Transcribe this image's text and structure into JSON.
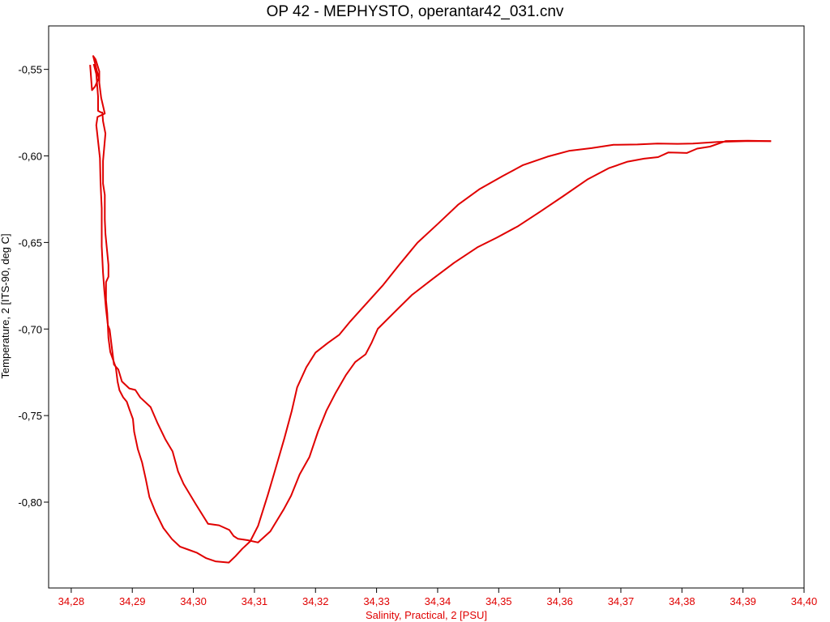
{
  "chart_data": {
    "type": "line",
    "title": "OP 42 - MEPHYSTO, operantar42_031.cnv",
    "xlabel": "Salinity, Practical, 2 [PSU]",
    "ylabel": "Temperature, 2 [ITS-90, deg C]",
    "xlim": [
      34.2763,
      34.4
    ],
    "ylim": [
      -0.8496,
      -0.5249
    ],
    "x_ticks": [
      34.28,
      34.29,
      34.3,
      34.31,
      34.32,
      34.33,
      34.34,
      34.35,
      34.36,
      34.37,
      34.38,
      34.39,
      34.4
    ],
    "x_tick_labels": [
      "34,28",
      "34,29",
      "34,30",
      "34,31",
      "34,32",
      "34,33",
      "34,34",
      "34,35",
      "34,36",
      "34,37",
      "34,38",
      "34,39",
      "34,40"
    ],
    "y_ticks": [
      -0.55,
      -0.6,
      -0.65,
      -0.7,
      -0.75,
      -0.8
    ],
    "y_tick_labels": [
      "-0,55",
      "-0,60",
      "-0,65",
      "-0,70",
      "-0,75",
      "-0,80"
    ],
    "grid": false,
    "colors": {
      "series": "#e00000",
      "x_axis_text": "#e00000",
      "y_axis_text": "#000000",
      "frame": "#000000"
    },
    "series": [
      {
        "x": [
          34.2837,
          34.2837,
          34.2841,
          34.2844,
          34.2844,
          34.2849,
          34.2851,
          34.2852,
          34.2856,
          34.2852,
          34.2852,
          34.2855,
          34.2855,
          34.2856,
          34.2861,
          34.2861,
          34.2861,
          34.2857,
          34.2857,
          34.2859,
          34.2861,
          34.2864,
          34.2873,
          34.2876,
          34.2879,
          34.2885,
          34.2891,
          34.2895,
          34.2901,
          34.2903,
          34.2909,
          34.2916,
          34.2922,
          34.2928,
          34.2938,
          34.2951,
          34.2965,
          34.2978,
          34.2993,
          34.3006,
          34.3021,
          34.3036,
          34.3058,
          34.3069,
          34.308,
          34.3093,
          34.3106,
          34.3122,
          34.3133,
          34.3149,
          34.3161,
          34.317,
          34.3185,
          34.32,
          34.322,
          34.3239,
          34.3257,
          34.3282,
          34.331,
          34.3337,
          34.3367,
          34.34,
          34.3434,
          34.3468,
          34.3507,
          34.354,
          34.358,
          34.3615,
          34.3652,
          34.3688,
          34.3727,
          34.376,
          34.3793,
          34.3818,
          34.3859,
          34.3904,
          34.3946
        ],
        "y": [
          -0.5469,
          -0.5472,
          -0.5526,
          -0.5658,
          -0.574,
          -0.5749,
          -0.5749,
          -0.5799,
          -0.5871,
          -0.6029,
          -0.616,
          -0.6225,
          -0.6368,
          -0.6451,
          -0.6629,
          -0.6675,
          -0.6698,
          -0.6729,
          -0.6833,
          -0.6908,
          -0.7052,
          -0.7133,
          -0.7222,
          -0.7305,
          -0.7354,
          -0.7394,
          -0.742,
          -0.7462,
          -0.752,
          -0.7593,
          -0.7693,
          -0.7771,
          -0.7866,
          -0.797,
          -0.8058,
          -0.815,
          -0.8214,
          -0.8257,
          -0.8276,
          -0.8293,
          -0.8324,
          -0.8342,
          -0.8349,
          -0.8312,
          -0.827,
          -0.8227,
          -0.8137,
          -0.7957,
          -0.7825,
          -0.7632,
          -0.7474,
          -0.7337,
          -0.7221,
          -0.7136,
          -0.7081,
          -0.7033,
          -0.6956,
          -0.6858,
          -0.6749,
          -0.6629,
          -0.6501,
          -0.6394,
          -0.628,
          -0.6193,
          -0.6115,
          -0.6053,
          -0.6004,
          -0.5971,
          -0.5955,
          -0.5936,
          -0.5934,
          -0.5929,
          -0.593,
          -0.5929,
          -0.5919,
          -0.5915,
          -0.5915
        ]
      },
      {
        "x": [
          34.3946,
          34.3908,
          34.3872,
          34.3846,
          34.3825,
          34.3808,
          34.3792,
          34.3778,
          34.3761,
          34.3738,
          34.3711,
          34.368,
          34.3646,
          34.3605,
          34.3568,
          34.3532,
          34.3497,
          34.3465,
          34.3427,
          34.3392,
          34.3358,
          34.3328,
          34.3302,
          34.3292,
          34.3282,
          34.3265,
          34.325,
          34.3233,
          34.3218,
          34.3204,
          34.319,
          34.3174,
          34.316,
          34.3148,
          34.3126,
          34.3106,
          34.3089,
          34.3073,
          34.3066,
          34.3059,
          34.3042,
          34.3024,
          34.3004,
          34.2984,
          34.2975,
          34.2966,
          34.2954,
          34.2941,
          34.293,
          34.2913,
          34.2905,
          34.2895,
          34.2883,
          34.2877,
          34.287,
          34.2863,
          34.286,
          34.2857,
          34.2854,
          34.2852,
          34.285,
          34.285,
          34.2848,
          34.2847,
          34.2841,
          34.2843,
          34.2855,
          34.2849,
          34.2846,
          34.2846,
          34.284,
          34.2836,
          34.2845,
          34.2839,
          34.2834,
          34.2831
        ],
        "y": [
          -0.5915,
          -0.5912,
          -0.5914,
          -0.5946,
          -0.5958,
          -0.5983,
          -0.5981,
          -0.598,
          -0.6007,
          -0.6016,
          -0.6033,
          -0.6071,
          -0.6134,
          -0.6234,
          -0.6322,
          -0.6405,
          -0.6472,
          -0.6528,
          -0.6617,
          -0.671,
          -0.6803,
          -0.6907,
          -0.6999,
          -0.7078,
          -0.7146,
          -0.7191,
          -0.7265,
          -0.7369,
          -0.7471,
          -0.7593,
          -0.774,
          -0.784,
          -0.7963,
          -0.8041,
          -0.8169,
          -0.8233,
          -0.822,
          -0.8212,
          -0.8196,
          -0.8161,
          -0.8134,
          -0.8125,
          -0.8012,
          -0.7895,
          -0.7823,
          -0.7707,
          -0.7636,
          -0.7541,
          -0.7451,
          -0.7395,
          -0.7352,
          -0.7343,
          -0.7303,
          -0.7233,
          -0.7205,
          -0.7004,
          -0.6978,
          -0.6884,
          -0.6771,
          -0.6673,
          -0.6522,
          -0.6303,
          -0.6149,
          -0.6012,
          -0.5822,
          -0.5775,
          -0.5755,
          -0.5664,
          -0.5578,
          -0.5511,
          -0.5443,
          -0.5423,
          -0.5551,
          -0.5599,
          -0.562,
          -0.5474
        ]
      }
    ]
  }
}
